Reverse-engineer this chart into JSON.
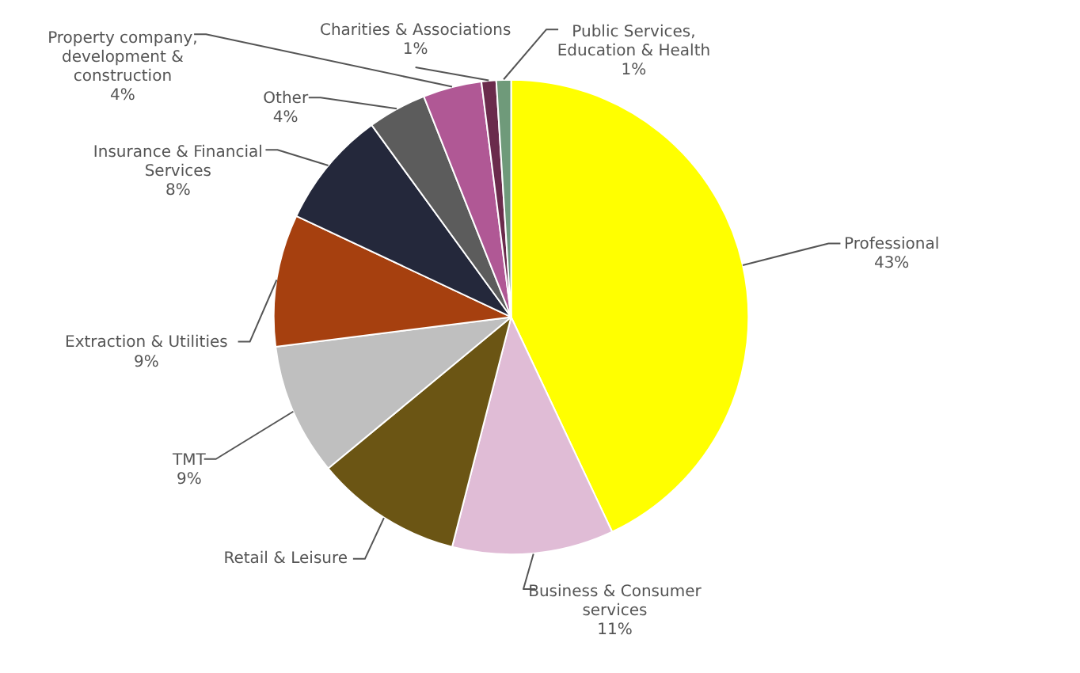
{
  "chart_data": {
    "type": "pie",
    "categories": [
      "Professional",
      "Business & Consumer services",
      "Retail & Leisure",
      "TMT",
      "Extraction & Utilities",
      "Insurance & Financial Services",
      "Other",
      "Property company, development & construction",
      "Charities & Associations",
      "Public Services, Education & Health"
    ],
    "values": [
      43,
      11,
      10,
      9,
      9,
      8,
      4,
      4,
      1,
      1
    ],
    "value_labels": [
      "43%",
      "11%",
      null,
      "9%",
      "9%",
      "8%",
      "4%",
      "4%",
      "1%",
      "1%"
    ],
    "colors": [
      "#ffff00",
      "#e0bcd6",
      "#6b5514",
      "#bfbfbf",
      "#a6400f",
      "#24283b",
      "#5c5c5c",
      "#b05895",
      "#6a2b4c",
      "#6f9a7a"
    ]
  }
}
